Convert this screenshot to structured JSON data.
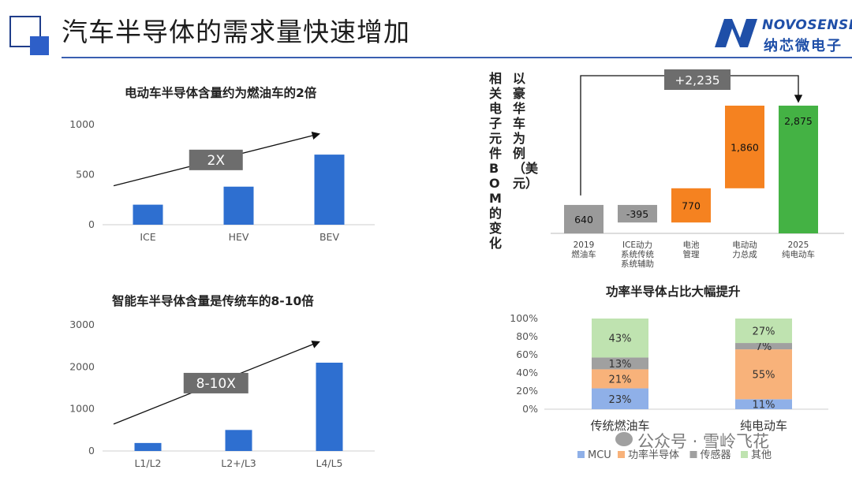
{
  "header": {
    "title": "汽车半导体的需求量快速增加",
    "logo_text": "NOVOSENSE",
    "logo_cn": "纳芯微电子",
    "accent": "#3a5fb0",
    "icon": "square-logo-icon"
  },
  "watermark": {
    "text": "公众号 · 雪岭飞花",
    "icon": "wechat-icon"
  },
  "chart_data": [
    {
      "type": "bar",
      "title": "电动车半导体含量约为燃油车的2倍",
      "categories": [
        "ICE",
        "HEV",
        "BEV"
      ],
      "values": [
        200,
        380,
        700
      ],
      "yticks": [
        0,
        500,
        1000
      ],
      "ylim": [
        0,
        1000
      ],
      "annotation": "2X",
      "color": "#2e6fd0"
    },
    {
      "type": "bar",
      "title": "智能车半导体含量是传统车的8-10倍",
      "categories": [
        "L1/L2",
        "L2+/L3",
        "L4/L5"
      ],
      "values": [
        190,
        500,
        2100
      ],
      "yticks": [
        0,
        1000,
        2000,
        3000
      ],
      "ylim": [
        0,
        3000
      ],
      "annotation": "8-10X",
      "color": "#2e6fd0"
    },
    {
      "type": "bar",
      "subtype": "waterfall",
      "ylabel_col1": "相关电子元件BOM的变化",
      "ylabel_col2": "以豪华车为例（美元）",
      "steps": [
        {
          "label": "2019燃油车",
          "label_lines": [
            "2019",
            "燃油车"
          ],
          "value": 640,
          "value_label": "640",
          "kind": "base",
          "color": "#9a9a9a"
        },
        {
          "label": "ICE动力系统传统系统辅助",
          "label_lines": [
            "ICE动力",
            "系统传统",
            "系统辅助"
          ],
          "value": -395,
          "value_label": "-395",
          "kind": "delta",
          "color": "#9a9a9a"
        },
        {
          "label": "电池管理",
          "label_lines": [
            "电池",
            "管理"
          ],
          "value": 770,
          "value_label": "770",
          "kind": "delta",
          "color": "#f58220"
        },
        {
          "label": "电动动力总成",
          "label_lines": [
            "电动动",
            "力总成"
          ],
          "value": 1860,
          "value_label": "1,860",
          "kind": "delta",
          "color": "#f58220"
        },
        {
          "label": "2025纯电动车",
          "label_lines": [
            "2025",
            "纯电动车"
          ],
          "value": 2875,
          "value_label": "2,875",
          "kind": "total",
          "color": "#44b244"
        }
      ],
      "annotation": "+2,235"
    },
    {
      "type": "bar",
      "subtype": "stacked-percent",
      "title": "功率半导体占比大幅提升",
      "categories": [
        "传统燃油车",
        "纯电动车"
      ],
      "yticks": [
        "0%",
        "20%",
        "40%",
        "60%",
        "80%",
        "100%"
      ],
      "series": [
        {
          "name": "MCU",
          "values": [
            23,
            11
          ],
          "labels": [
            "23%",
            "11%"
          ],
          "color": "#8fb0e8"
        },
        {
          "name": "功率半导体",
          "values": [
            21,
            55
          ],
          "labels": [
            "21%",
            "55%"
          ],
          "color": "#f8b27a"
        },
        {
          "name": "传感器",
          "values": [
            13,
            7
          ],
          "labels": [
            "13%",
            "7%"
          ],
          "color": "#a0a0a0"
        },
        {
          "name": "其他",
          "values": [
            43,
            27
          ],
          "labels": [
            "43%",
            "27%"
          ],
          "color": "#bfe3b0"
        }
      ]
    }
  ]
}
